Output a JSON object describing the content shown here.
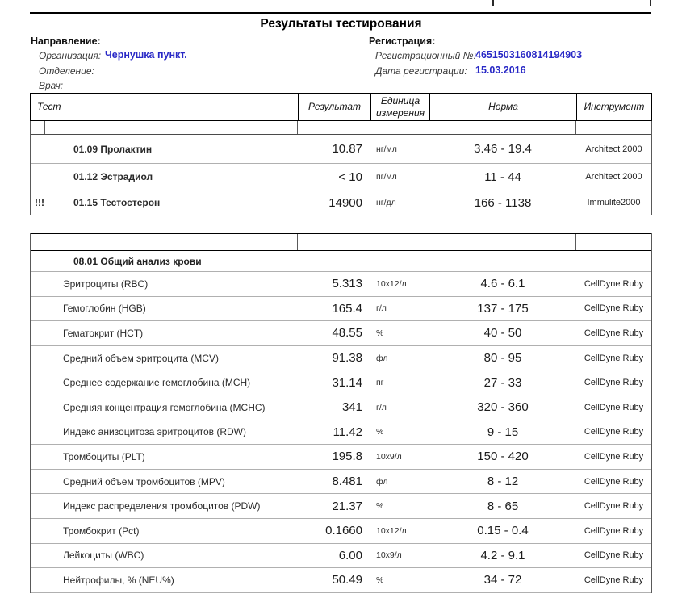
{
  "page": {
    "title": "Результаты тестирования"
  },
  "direction": {
    "heading": "Направление:",
    "organization_label": "Организация:",
    "organization_value": "Чернушка пункт.",
    "department_label": "Отделение:",
    "department_value": "",
    "doctor_label": "Врач:",
    "doctor_value": ""
  },
  "registration": {
    "heading": "Регистрация:",
    "number_label": "Регистрационный №:",
    "number_value": "4651503160814194903",
    "date_label": "Дата регистрации:",
    "date_value": "15.03.2016"
  },
  "table": {
    "headers": {
      "test": "Тест",
      "result": "Результат",
      "unit": "Единица измерения",
      "norm": "Норма",
      "instrument": "Инструмент"
    },
    "blocks": [
      {
        "section": "",
        "bold_names": true,
        "rows": [
          {
            "flag": "",
            "name": "01.09 Пролактин",
            "result": "10.87",
            "unit": "нг/мл",
            "norm": "3.46 - 19.4",
            "instrument": "Architect 2000"
          },
          {
            "flag": "",
            "name": "01.12 Эстрадиол",
            "result": "< 10",
            "unit": "пг/мл",
            "norm": "11 - 44",
            "instrument": "Architect 2000"
          },
          {
            "flag": "!!!",
            "name": "01.15 Тестостерон",
            "result": "14900",
            "unit": "нг/дл",
            "norm": "166 - 1138",
            "instrument": "Immulite2000"
          }
        ]
      },
      {
        "section": "08.01 Общий анализ крови",
        "bold_names": false,
        "rows": [
          {
            "flag": "",
            "name": "Эритроциты (RBC)",
            "result": "5.313",
            "unit": "10x12/л",
            "norm": "4.6 - 6.1",
            "instrument": "CellDyne Ruby"
          },
          {
            "flag": "",
            "name": "Гемоглобин (HGB)",
            "result": "165.4",
            "unit": "г/л",
            "norm": "137 - 175",
            "instrument": "CellDyne Ruby"
          },
          {
            "flag": "",
            "name": "Гематокрит (HCT)",
            "result": "48.55",
            "unit": "%",
            "norm": "40 - 50",
            "instrument": "CellDyne Ruby"
          },
          {
            "flag": "",
            "name": "Средний объем эритроцита (MCV)",
            "result": "91.38",
            "unit": "фл",
            "norm": "80 - 95",
            "instrument": "CellDyne Ruby"
          },
          {
            "flag": "",
            "name": "Среднее содержание гемоглобина (MCH)",
            "result": "31.14",
            "unit": "пг",
            "norm": "27 - 33",
            "instrument": "CellDyne Ruby"
          },
          {
            "flag": "",
            "name": "Средняя концентрация гемоглобина (MCHC)",
            "result": "341",
            "unit": "г/л",
            "norm": "320 - 360",
            "instrument": "CellDyne Ruby"
          },
          {
            "flag": "",
            "name": "Индекс анизоцитоза эритроцитов (RDW)",
            "result": "11.42",
            "unit": "%",
            "norm": "9 - 15",
            "instrument": "CellDyne Ruby"
          },
          {
            "flag": "",
            "name": "Тромбоциты (PLT)",
            "result": "195.8",
            "unit": "10x9/л",
            "norm": "150 - 420",
            "instrument": "CellDyne Ruby"
          },
          {
            "flag": "",
            "name": "Средний объем тромбоцитов (MPV)",
            "result": "8.481",
            "unit": "фл",
            "norm": "8 - 12",
            "instrument": "CellDyne Ruby"
          },
          {
            "flag": "",
            "name": "Индекс распределения тромбоцитов (PDW)",
            "result": "21.37",
            "unit": "%",
            "norm": "8 - 65",
            "instrument": "CellDyne Ruby"
          },
          {
            "flag": "",
            "name": "Тромбокрит (Pct)",
            "result": "0.1660",
            "unit": "10x12/л",
            "norm": "0.15 - 0.4",
            "instrument": "CellDyne Ruby"
          },
          {
            "flag": "",
            "name": "Лейкоциты (WBC)",
            "result": "6.00",
            "unit": "10x9/л",
            "norm": "4.2 - 9.1",
            "instrument": "CellDyne Ruby"
          },
          {
            "flag": "",
            "name": "Нейтрофилы, % (NEU%)",
            "result": "50.49",
            "unit": "%",
            "norm": "34 - 72",
            "instrument": "CellDyne Ruby"
          }
        ]
      }
    ]
  },
  "colors": {
    "value_blue": "#2929c6",
    "text_dark": "#1c1c1c",
    "label_gray": "#3a3a3a",
    "separator_gray": "#b0b0b0",
    "border_black": "#000000"
  }
}
